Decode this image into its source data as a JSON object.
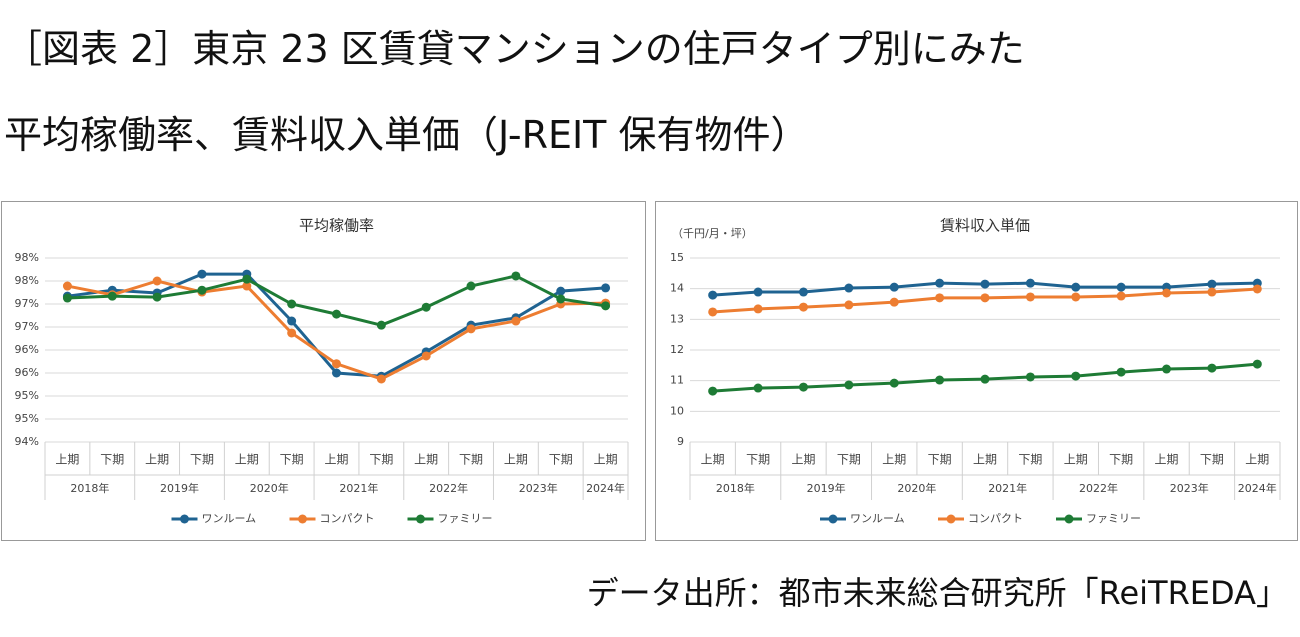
{
  "title_lines": [
    "［図表 2］東京 23 区賃貸マンションの住戸タイプ別にみた",
    "平均稼働率、賃料収入単価（J-REIT 保有物件）"
  ],
  "source": "データ出所：都市未来総合研究所「ReiTREDA」",
  "chart_data": [
    {
      "type": "line",
      "title": "平均稼働率",
      "categories": [
        "上期",
        "下期",
        "上期",
        "下期",
        "上期",
        "下期",
        "上期",
        "下期",
        "上期",
        "下期",
        "上期",
        "下期",
        "上期"
      ],
      "groups": [
        "2018年",
        "2019年",
        "2020年",
        "2021年",
        "2022年",
        "2023年",
        "2024年"
      ],
      "ylim": [
        94,
        98
      ],
      "yticks": [
        {
          "value": 94,
          "label": "94%"
        },
        {
          "value": 94.5,
          "label": "95%"
        },
        {
          "value": 95,
          "label": "95%"
        },
        {
          "value": 95.5,
          "label": "96%"
        },
        {
          "value": 96,
          "label": "96%"
        },
        {
          "value": 96.5,
          "label": "97%"
        },
        {
          "value": 97,
          "label": "97%"
        },
        {
          "value": 97.5,
          "label": "98%"
        },
        {
          "value": 98,
          "label": "98%"
        }
      ],
      "grid": true,
      "series": [
        {
          "name": "ワンルーム",
          "color": "#1f6391",
          "values": [
            97.17,
            97.3,
            97.24,
            97.65,
            97.65,
            96.63,
            95.5,
            95.43,
            95.96,
            96.54,
            96.7,
            97.28,
            97.35
          ]
        },
        {
          "name": "コンパクト",
          "color": "#ed7d31",
          "values": [
            97.39,
            97.2,
            97.5,
            97.26,
            97.39,
            96.37,
            95.7,
            95.37,
            95.87,
            96.46,
            96.63,
            97.0,
            97.02
          ]
        },
        {
          "name": "ファミリー",
          "color": "#1e7b35",
          "values": [
            97.13,
            97.17,
            97.15,
            97.3,
            97.54,
            97.0,
            96.78,
            96.54,
            96.93,
            97.39,
            97.61,
            97.11,
            96.96
          ]
        }
      ]
    },
    {
      "type": "line",
      "title": "賃料収入単価",
      "unit_label": "（千円/月・坪）",
      "categories": [
        "上期",
        "下期",
        "上期",
        "下期",
        "上期",
        "下期",
        "上期",
        "下期",
        "上期",
        "下期",
        "上期",
        "下期",
        "上期"
      ],
      "groups": [
        "2018年",
        "2019年",
        "2020年",
        "2021年",
        "2022年",
        "2023年",
        "2024年"
      ],
      "ylim": [
        9,
        15
      ],
      "yticks": [
        9,
        10,
        11,
        12,
        13,
        14,
        15
      ],
      "grid": true,
      "series": [
        {
          "name": "ワンルーム",
          "color": "#1f6391",
          "values": [
            13.79,
            13.89,
            13.89,
            14.02,
            14.05,
            14.18,
            14.15,
            14.18,
            14.05,
            14.05,
            14.05,
            14.15,
            14.18
          ]
        },
        {
          "name": "コンパクト",
          "color": "#ed7d31",
          "values": [
            13.24,
            13.34,
            13.4,
            13.47,
            13.56,
            13.7,
            13.7,
            13.73,
            13.73,
            13.76,
            13.86,
            13.89,
            13.99
          ]
        },
        {
          "name": "ファミリー",
          "color": "#1e7b35",
          "values": [
            10.66,
            10.76,
            10.79,
            10.86,
            10.92,
            11.02,
            11.05,
            11.12,
            11.15,
            11.28,
            11.38,
            11.41,
            11.54
          ]
        }
      ]
    }
  ]
}
